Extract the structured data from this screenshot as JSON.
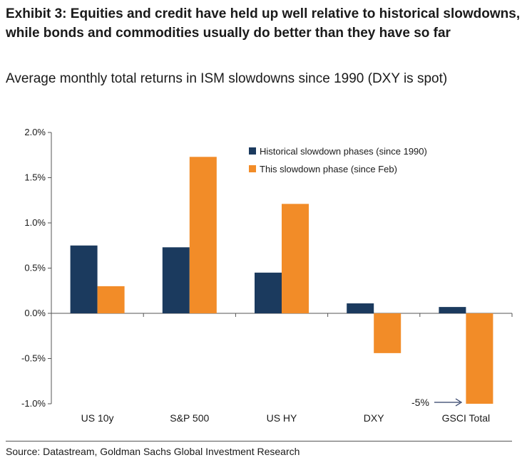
{
  "chart_data": {
    "type": "bar",
    "title": "Exhibit 3: Equities and credit have held up well relative to historical slowdowns, while bonds and commodities usually do better than they have so far",
    "subtitle": "Average monthly total returns in ISM slowdowns since 1990 (DXY is spot)",
    "categories": [
      "US 10y",
      "S&P 500",
      "US HY",
      "DXY",
      "GSCI Total"
    ],
    "series": [
      {
        "name": "Historical slowdown phases (since 1990)",
        "values": [
          0.75,
          0.73,
          0.45,
          0.11,
          0.07
        ]
      },
      {
        "name": "This slowdown phase (since Feb)",
        "values": [
          0.3,
          1.73,
          1.21,
          -0.44,
          -1.0
        ]
      }
    ],
    "ylim": [
      -1.0,
      2.0
    ],
    "yticks": [
      "2.0%",
      "1.5%",
      "1.0%",
      "0.5%",
      "0.0%",
      "-0.5%",
      "-1.0%"
    ],
    "ytick_values": [
      2.0,
      1.5,
      1.0,
      0.5,
      0.0,
      -0.5,
      -1.0
    ],
    "legend_position": "top-right",
    "grid": false,
    "annotation": {
      "text": "-5%",
      "category": "GSCI Total"
    }
  },
  "colors": {
    "historical": "#1b3a5e",
    "current": "#f28c28"
  },
  "source": "Source: Datastream, Goldman Sachs Global Investment Research"
}
